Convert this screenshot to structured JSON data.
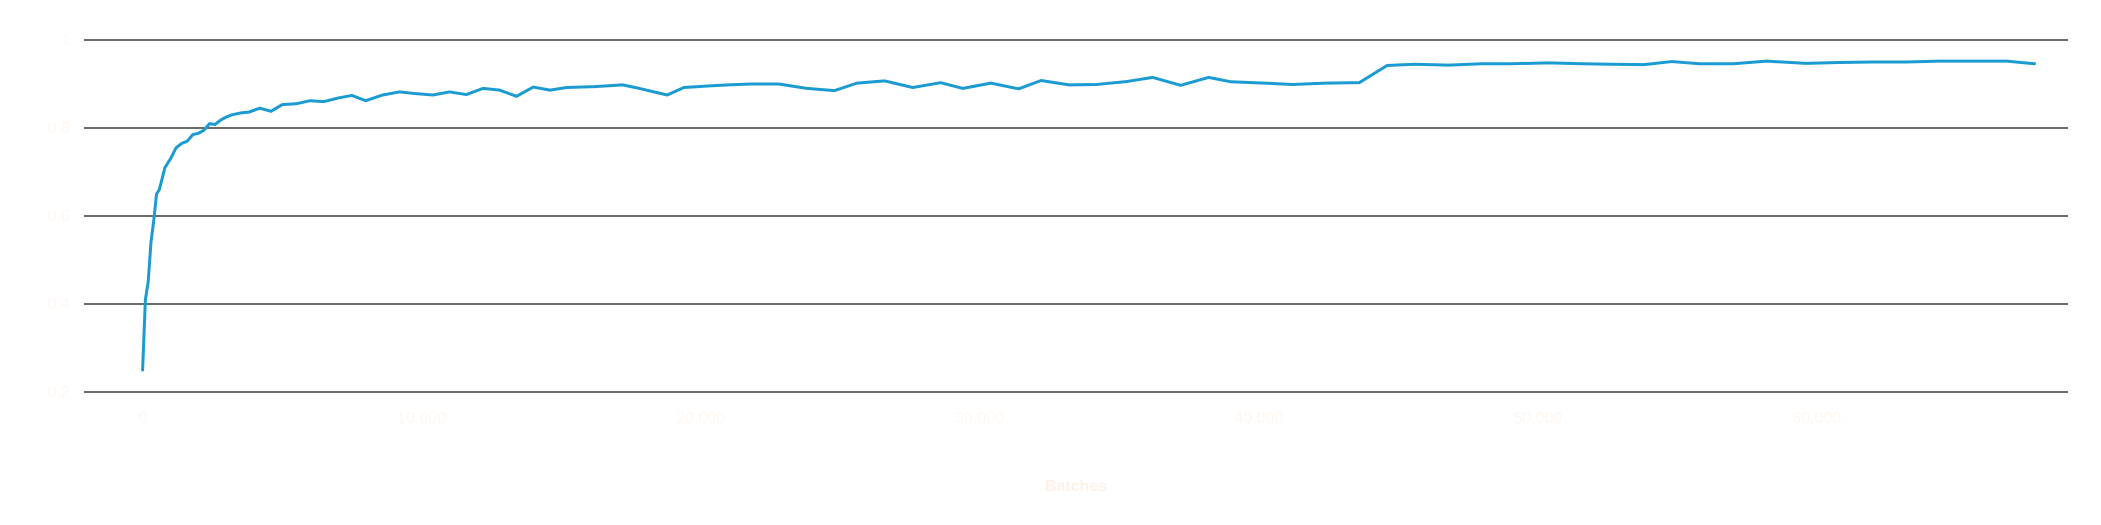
{
  "chart_data": {
    "type": "line",
    "title": "",
    "xlabel": "Batches",
    "ylabel": "",
    "xlim": [
      -2100,
      69000
    ],
    "ylim": [
      0.2,
      1.0
    ],
    "grid": "horizontal",
    "legend": "none",
    "x_ticks": [
      0,
      10000,
      20000,
      30000,
      40000,
      50000,
      60000
    ],
    "x_tick_labels": [
      "0",
      "10,000",
      "20,000",
      "30,000",
      "40,000",
      "50,000",
      "60,000"
    ],
    "y_ticks": [
      0.2,
      0.4,
      0.6,
      0.8,
      1.0
    ],
    "y_tick_labels": [
      "0.2",
      "0.4",
      "0.6",
      "0.8",
      "1"
    ],
    "series": [
      {
        "color": "#1b9bd1",
        "x": [
          0,
          100,
          200,
          300,
          400,
          500,
          600,
          800,
          1000,
          1200,
          1400,
          1600,
          1800,
          2000,
          2200,
          2400,
          2600,
          2800,
          3000,
          3200,
          3500,
          3800,
          4200,
          4600,
          5000,
          5500,
          6000,
          6500,
          7000,
          7500,
          8000,
          8600,
          9200,
          9800,
          10400,
          11000,
          11600,
          12200,
          12800,
          13400,
          14000,
          14600,
          15200,
          16200,
          17200,
          17800,
          18800,
          19400,
          20400,
          21000,
          21800,
          22800,
          23800,
          24800,
          25600,
          26600,
          27600,
          28600,
          29400,
          30400,
          31400,
          32200,
          33200,
          34200,
          35200,
          36200,
          37200,
          38200,
          39000,
          40200,
          41200,
          42400,
          43600,
          44600,
          45600,
          46800,
          48000,
          49000,
          50400,
          51600,
          52600,
          53800,
          54800,
          55800,
          57000,
          58200,
          59600,
          60800,
          62000,
          63200,
          64400,
          65600,
          66800,
          67800
        ],
        "values": [
          0.25,
          0.41,
          0.45,
          0.54,
          0.59,
          0.65,
          0.66,
          0.71,
          0.73,
          0.755,
          0.765,
          0.77,
          0.785,
          0.788,
          0.795,
          0.81,
          0.808,
          0.818,
          0.825,
          0.83,
          0.834,
          0.836,
          0.845,
          0.838,
          0.853,
          0.855,
          0.862,
          0.86,
          0.868,
          0.874,
          0.862,
          0.875,
          0.882,
          0.878,
          0.875,
          0.882,
          0.876,
          0.89,
          0.886,
          0.872,
          0.893,
          0.886,
          0.892,
          0.894,
          0.898,
          0.89,
          0.875,
          0.892,
          0.896,
          0.898,
          0.9,
          0.9,
          0.89,
          0.885,
          0.902,
          0.907,
          0.892,
          0.903,
          0.89,
          0.902,
          0.889,
          0.908,
          0.898,
          0.899,
          0.905,
          0.915,
          0.897,
          0.915,
          0.905,
          0.902,
          0.899,
          0.902,
          0.903,
          0.942,
          0.945,
          0.943,
          0.946,
          0.946,
          0.948,
          0.946,
          0.945,
          0.944,
          0.951,
          0.946,
          0.946,
          0.952,
          0.947,
          0.949,
          0.95,
          0.95,
          0.952,
          0.952,
          0.952,
          0.946
        ]
      }
    ]
  },
  "colors": {
    "line": "#1b9bd1",
    "tick_label": "#fff6ef",
    "axis_title": "#fff1e8",
    "grid": "#3a3a3a",
    "background": "#ffffff"
  }
}
